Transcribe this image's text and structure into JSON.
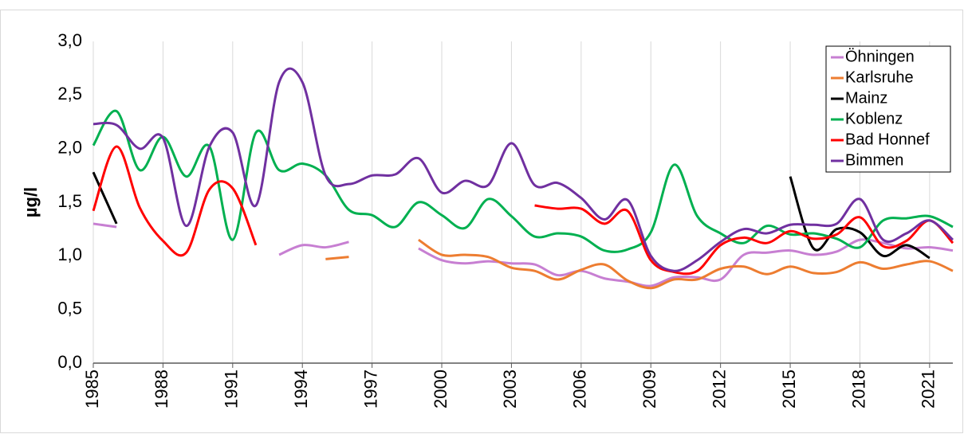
{
  "chart_data": {
    "type": "line",
    "y_label": "µg/l",
    "x": [
      1985,
      1986,
      1987,
      1988,
      1989,
      1990,
      1991,
      1992,
      1993,
      1994,
      1995,
      1996,
      1997,
      1998,
      1999,
      2000,
      2001,
      2002,
      2003,
      2004,
      2005,
      2006,
      2007,
      2008,
      2009,
      2010,
      2011,
      2012,
      2013,
      2014,
      2015,
      2016,
      2017,
      2018,
      2019,
      2020,
      2021,
      2022
    ],
    "series": [
      {
        "name": "Öhningen",
        "color": "#c77fd2",
        "values": [
          1.3,
          1.27,
          null,
          null,
          null,
          null,
          null,
          null,
          1.01,
          1.1,
          1.08,
          1.13,
          null,
          null,
          1.07,
          0.96,
          0.93,
          0.95,
          0.93,
          0.92,
          0.82,
          0.86,
          0.79,
          0.76,
          0.72,
          0.8,
          0.8,
          0.78,
          1.01,
          1.03,
          1.05,
          1.01,
          1.04,
          1.15,
          1.12,
          1.07,
          1.08,
          1.05
        ]
      },
      {
        "name": "Karlsruhe",
        "color": "#ed7d31",
        "values": [
          null,
          null,
          null,
          null,
          null,
          null,
          null,
          null,
          null,
          null,
          0.97,
          0.99,
          null,
          null,
          1.15,
          1.01,
          1.01,
          0.99,
          0.89,
          0.86,
          0.78,
          0.87,
          0.92,
          0.77,
          0.7,
          0.78,
          0.78,
          0.88,
          0.9,
          0.83,
          0.9,
          0.84,
          0.85,
          0.94,
          0.88,
          0.92,
          0.95,
          0.86
        ]
      },
      {
        "name": "Mainz",
        "color": "#000000",
        "values": [
          1.78,
          1.3,
          null,
          null,
          null,
          null,
          null,
          null,
          null,
          null,
          null,
          null,
          null,
          null,
          null,
          null,
          null,
          null,
          null,
          null,
          null,
          null,
          null,
          null,
          null,
          null,
          null,
          null,
          null,
          null,
          1.74,
          1.07,
          1.25,
          1.22,
          1.0,
          1.1,
          0.98,
          null
        ]
      },
      {
        "name": "Koblenz",
        "color": "#00b050",
        "values": [
          2.03,
          2.35,
          1.8,
          2.11,
          1.74,
          2.02,
          1.15,
          2.15,
          1.8,
          1.86,
          1.75,
          1.43,
          1.38,
          1.27,
          1.5,
          1.38,
          1.26,
          1.53,
          1.37,
          1.18,
          1.21,
          1.18,
          1.05,
          1.06,
          1.22,
          1.85,
          1.37,
          1.21,
          1.12,
          1.28,
          1.2,
          1.21,
          1.16,
          1.08,
          1.33,
          1.35,
          1.37,
          1.27
        ]
      },
      {
        "name": "Bad Honnef",
        "color": "#ff0000",
        "values": [
          1.42,
          2.02,
          1.45,
          1.14,
          1.03,
          1.62,
          1.63,
          1.1,
          null,
          null,
          null,
          null,
          null,
          null,
          null,
          null,
          null,
          null,
          null,
          1.47,
          1.44,
          1.44,
          1.3,
          1.42,
          0.96,
          0.85,
          0.86,
          1.1,
          1.17,
          1.12,
          1.23,
          1.16,
          1.2,
          1.36,
          1.09,
          1.14,
          1.33,
          1.12
        ]
      },
      {
        "name": "Bimmen",
        "color": "#7030a0",
        "values": [
          2.23,
          2.22,
          2.0,
          2.1,
          1.28,
          2.02,
          2.15,
          1.47,
          2.62,
          2.62,
          1.75,
          1.67,
          1.75,
          1.76,
          1.91,
          1.59,
          1.7,
          1.66,
          2.05,
          1.66,
          1.68,
          1.54,
          1.34,
          1.52,
          1.0,
          0.86,
          0.96,
          1.13,
          1.25,
          1.21,
          1.29,
          1.29,
          1.3,
          1.53,
          1.15,
          1.21,
          1.33,
          1.15
        ]
      }
    ],
    "xlim": [
      1985,
      2022
    ],
    "xticks": [
      1985,
      1988,
      1991,
      1994,
      1997,
      2000,
      2003,
      2006,
      2009,
      2012,
      2015,
      2018,
      2021
    ],
    "ylim": [
      0,
      3
    ],
    "yticks": [
      {
        "value": 0,
        "label": "0,0"
      },
      {
        "value": 0.5,
        "label": "0,5"
      },
      {
        "value": 1,
        "label": "1,0"
      },
      {
        "value": 1.5,
        "label": "1,5"
      },
      {
        "value": 2,
        "label": "2,0"
      },
      {
        "value": 2.5,
        "label": "2,5"
      },
      {
        "value": 3,
        "label": "3,0"
      }
    ],
    "grid": "x",
    "legend": "top-right"
  }
}
